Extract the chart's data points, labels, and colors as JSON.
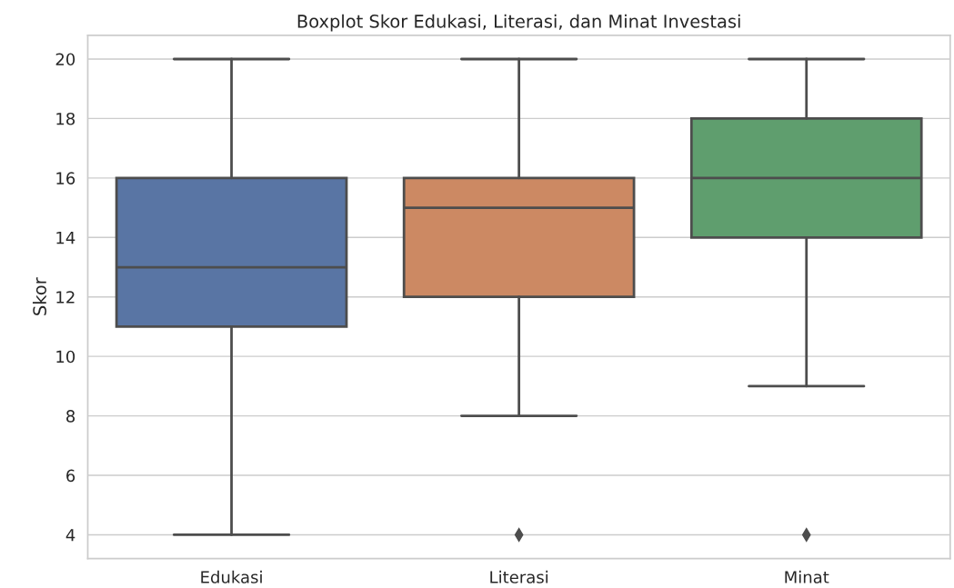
{
  "chart_data": {
    "type": "box",
    "title": "Boxplot Skor Edukasi, Literasi, dan Minat Investasi",
    "ylabel": "Skor",
    "categories": [
      "Edukasi",
      "Literasi",
      "Minat"
    ],
    "colors": [
      "#5975a4",
      "#cc8963",
      "#5f9e6e"
    ],
    "boxes": [
      {
        "low": 4,
        "q1": 11,
        "median": 13,
        "q3": 16,
        "high": 20
      },
      {
        "low": 8,
        "q1": 12,
        "median": 15,
        "q3": 16,
        "high": 20,
        "outliers": [
          4
        ]
      },
      {
        "low": 9,
        "q1": 14,
        "median": 16,
        "q3": 18,
        "high": 20,
        "outliers": [
          4
        ]
      }
    ],
    "ylim": [
      3.2,
      20.8
    ],
    "yticks": [
      4,
      6,
      8,
      10,
      12,
      14,
      16,
      18,
      20
    ],
    "grid": "y",
    "marker": "diamond"
  }
}
